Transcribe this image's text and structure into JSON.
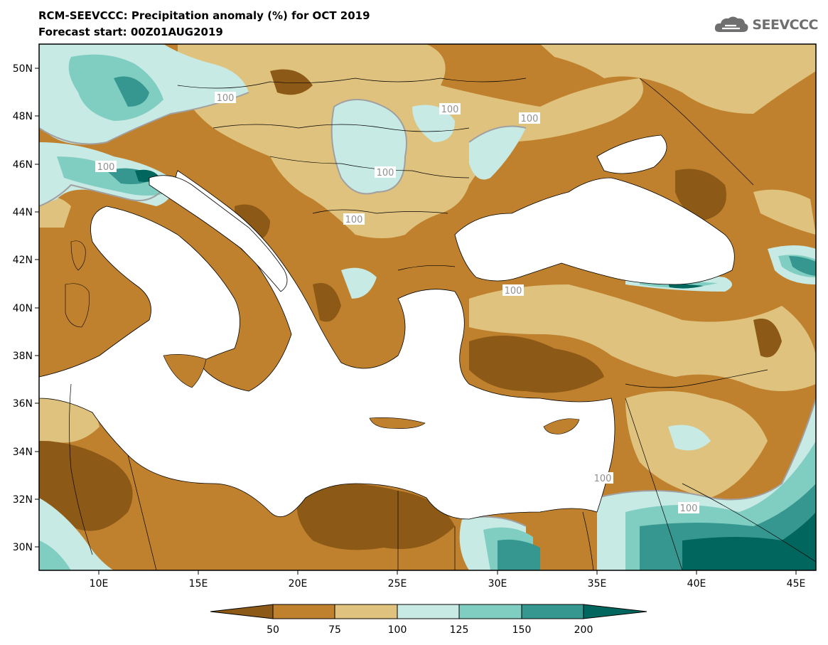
{
  "header": {
    "title": "RCM-SEEVCCC: Precipitation anomaly (%) for OCT 2019",
    "subtitle": "Forecast start: 00Z01AUG2019",
    "logo_text": "SEEVCCC"
  },
  "map": {
    "lon_range": [
      7,
      46
    ],
    "lat_range": [
      29,
      51
    ],
    "lat_ticks": [
      "30N",
      "32N",
      "34N",
      "36N",
      "38N",
      "40N",
      "42N",
      "44N",
      "46N",
      "48N",
      "50N"
    ],
    "lon_ticks": [
      "10E",
      "15E",
      "20E",
      "25E",
      "30E",
      "35E",
      "40E",
      "45E"
    ],
    "contour_labels": [
      "100",
      "100",
      "100",
      "100",
      "100",
      "100",
      "100",
      "100",
      "100"
    ]
  },
  "colorbar": {
    "labels": [
      "50",
      "75",
      "100",
      "125",
      "150",
      "200"
    ],
    "colors": [
      "#8c5a16",
      "#bf812d",
      "#dfc27d",
      "#c7eae5",
      "#80cdc1",
      "#35978f",
      "#01665e"
    ]
  },
  "colors": {
    "sea": "#ffffff",
    "base_land": "#bf812d",
    "contour_line": "#a0a0a0"
  }
}
